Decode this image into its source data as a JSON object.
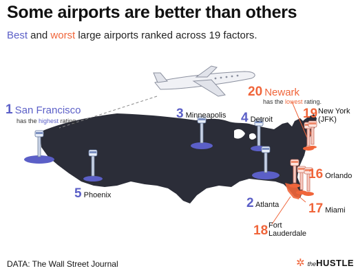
{
  "title": "Some airports are better than others",
  "subtitle": {
    "best": "Best",
    "and": " and ",
    "worst": "worst",
    "rest": " large airports ranked across 19 factors."
  },
  "colors": {
    "best": "#5b5fc7",
    "worst": "#f0653a",
    "land": "#2b2d38"
  },
  "airports": {
    "sf": {
      "rank": "1",
      "name": "San Francisco",
      "note_pre": "has the ",
      "note_hl": "highest",
      "note_post": " rating."
    },
    "phoenix": {
      "rank": "5",
      "name": "Phoenix"
    },
    "minneapolis": {
      "rank": "3",
      "name": "Minneapolis"
    },
    "detroit": {
      "rank": "4",
      "name": "Detroit"
    },
    "atlanta": {
      "rank": "2",
      "name": "Atlanta"
    },
    "newark": {
      "rank": "20",
      "name": "Newark",
      "note_pre": "has the ",
      "note_hl": "lowest",
      "note_post": " rating."
    },
    "jfk": {
      "rank": "19",
      "name_line1": "New York",
      "name_line2": "(JFK)"
    },
    "orlando": {
      "rank": "16",
      "name": "Orlando"
    },
    "miami": {
      "rank": "17",
      "name": "Miami"
    },
    "fll": {
      "rank": "18",
      "name_line1": "Fort",
      "name_line2": "Lauderdale"
    }
  },
  "source": "DATA: The Wall Street Journal",
  "brand": {
    "prefix": "the",
    "name": "HUSTLE"
  },
  "icons": [
    "airplane-icon",
    "control-tower-icon",
    "hubspot-logo-icon"
  ]
}
